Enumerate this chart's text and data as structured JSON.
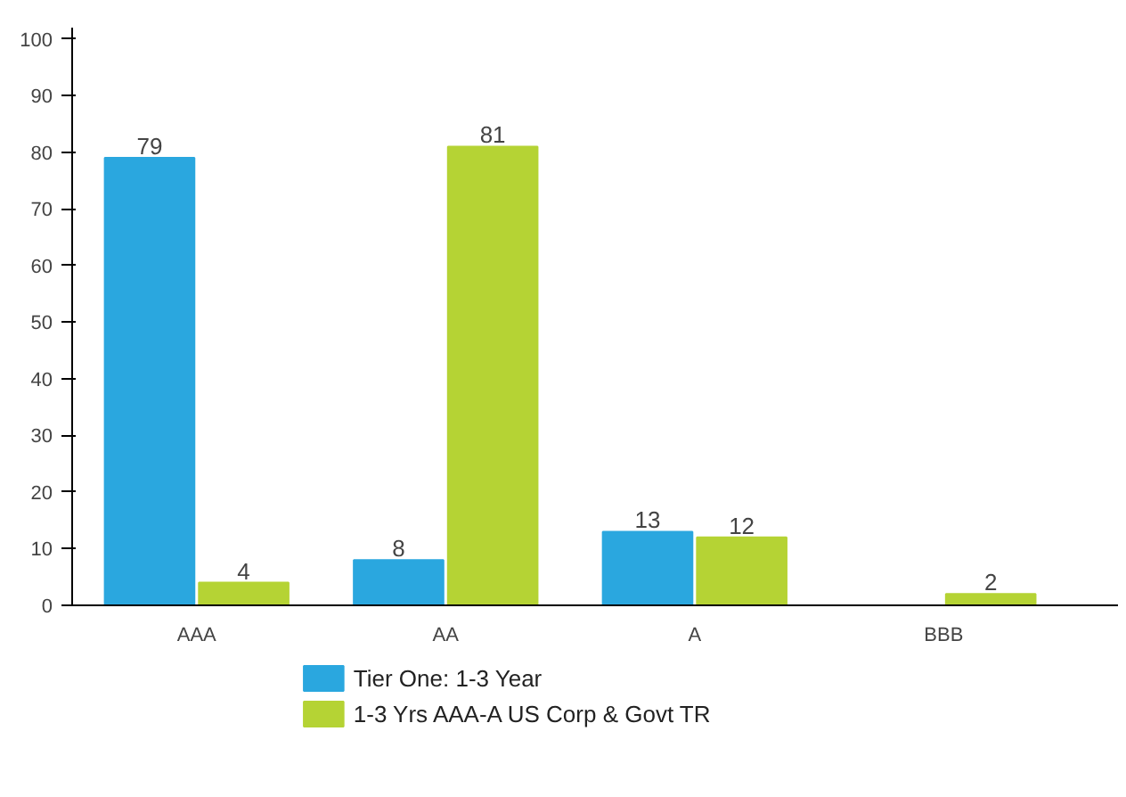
{
  "chart_data": {
    "type": "bar",
    "categories": [
      "AAA",
      "AA",
      "A",
      "BBB"
    ],
    "series": [
      {
        "name": "Tier One: 1-3 Year",
        "color": "#2aa7df",
        "values": [
          79,
          8,
          13,
          null
        ]
      },
      {
        "name": "1-3 Yrs AAA-A US Corp & Govt TR",
        "color": "#b5d334",
        "values": [
          4,
          81,
          12,
          2
        ]
      }
    ],
    "ylim": [
      0,
      102
    ],
    "yticks": [
      0,
      10,
      20,
      30,
      40,
      50,
      60,
      70,
      80,
      90,
      100
    ],
    "grid": false,
    "data_labels": true,
    "legend": "bottom"
  }
}
